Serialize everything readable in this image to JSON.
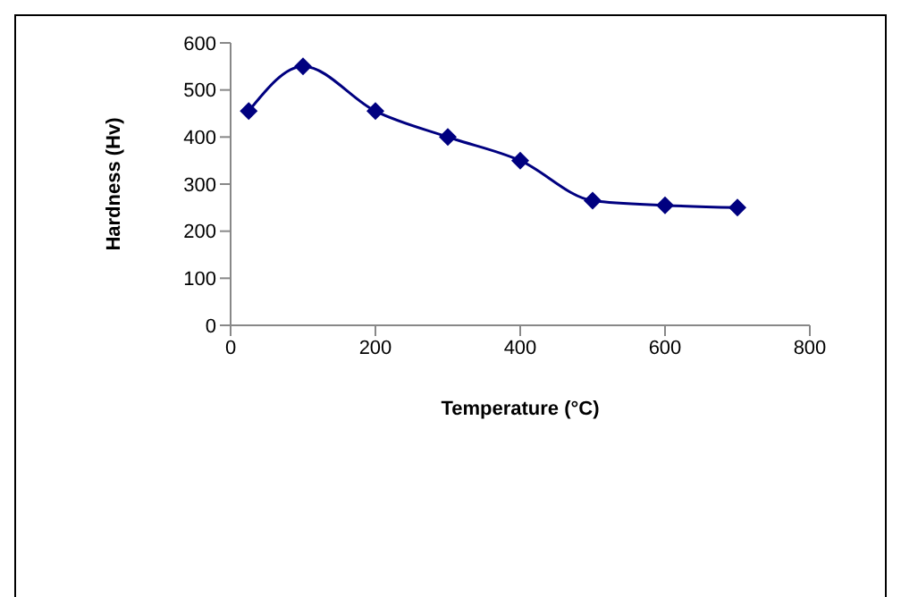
{
  "chart_data": {
    "type": "line",
    "xlabel": "Temperature  (°C)",
    "ylabel": "Hardness (Hv)",
    "x": [
      25,
      100,
      200,
      300,
      400,
      500,
      600,
      700
    ],
    "series": [
      {
        "color": "#000080",
        "values": [
          455,
          550,
          455,
          400,
          350,
          265,
          255,
          250
        ]
      }
    ],
    "xlim": [
      0,
      800
    ],
    "xticks": [
      0,
      200,
      400,
      600,
      800
    ],
    "ylim": [
      0,
      600
    ],
    "yticks": [
      0,
      100,
      200,
      300,
      400,
      500,
      600
    ],
    "grid": false,
    "legend": false,
    "marker": "diamond",
    "line_style": "solid"
  }
}
